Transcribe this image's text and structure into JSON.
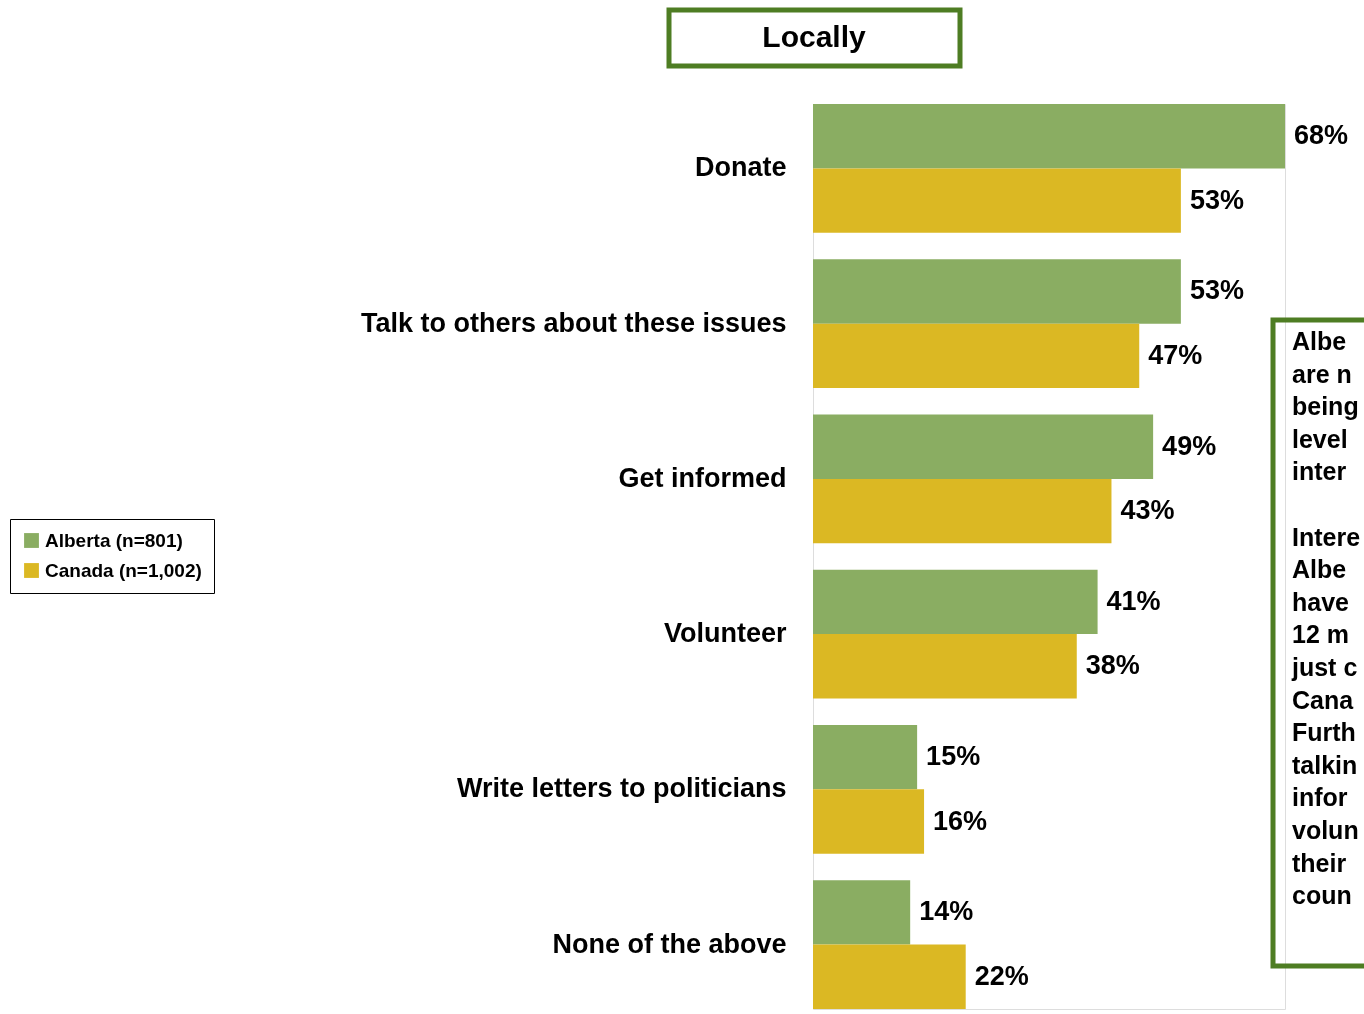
{
  "chart_data": {
    "type": "bar",
    "orientation": "horizontal",
    "title": "Locally",
    "categories": [
      "Donate",
      "Talk to others about these issues",
      "Get informed",
      "Volunteer",
      "Write letters to politicians",
      "None of the above"
    ],
    "series": [
      {
        "name": "Alberta (n=801)",
        "color": "#8aad62",
        "values": [
          68,
          53,
          49,
          41,
          15,
          14
        ],
        "value_labels": [
          "68%",
          "53%",
          "49%",
          "41%",
          "15%",
          "14%"
        ]
      },
      {
        "name": "Canada (n=1,002)",
        "color": "#dbb823",
        "values": [
          53,
          47,
          43,
          38,
          16,
          22
        ],
        "value_labels": [
          "53%",
          "47%",
          "43%",
          "38%",
          "16%",
          "22%"
        ]
      }
    ],
    "legend": "left",
    "grid": false,
    "tick_labels": "y",
    "annotations": [
      "Albe\nare n\nbeing\nlevel\ninter",
      "Intere\nAlbe\nhave\n12 m\njust c\nCana\nFurth\ntalkin\ninfor\nvolun\ntheir\ncoun"
    ]
  }
}
